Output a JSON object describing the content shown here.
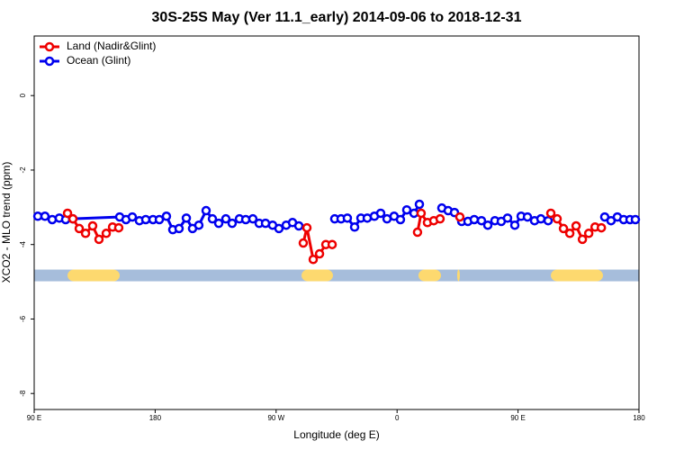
{
  "chart_data": {
    "type": "line",
    "title": "30S-25S May (Ver 11.1_early)   2014-09-06 to 2018-12-31",
    "x_label": "Longitude (deg E)",
    "y_label": "XCO2 - MLO trend (ppm)",
    "xlim": [
      90,
      540
    ],
    "ylim": [
      -8.43,
      1.6
    ],
    "xticks": [
      {
        "value": 90,
        "label": "90 E"
      },
      180,
      {
        "value": 270,
        "label": "90 W"
      },
      {
        "value": 360,
        "label": "0"
      },
      {
        "value": 450,
        "label": "90 E"
      },
      {
        "value": 540,
        "label": "180"
      }
    ],
    "yticks": [
      0,
      -2,
      -4,
      -6,
      -8
    ],
    "legend": "top-left",
    "land_band": {
      "y": -4.83,
      "color": "#a6bddb",
      "land_color": "#fdd96f",
      "spans": [
        [
          114.8,
          153.6
        ],
        [
          288.9,
          312.3
        ],
        [
          375.9,
          392.7
        ],
        [
          404.7,
          406.7
        ],
        [
          474.4,
          513.2
        ]
      ]
    },
    "series": [
      {
        "name": "Land (Nadir&Glint)",
        "color": "#ee0000",
        "x": [
          114.8,
          118.8,
          123.5,
          128.2,
          133.5,
          138.2,
          143.6,
          148.3,
          152.9,
          null,
          290.2,
          292.9,
          297.6,
          302.3,
          307.0,
          311.7,
          null,
          375.2,
          377.9,
          382.6,
          387.3,
          392.0,
          null,
          406.7,
          null,
          474.4,
          479.1,
          483.8,
          488.5,
          493.2,
          497.9,
          502.6,
          507.3,
          512.0
        ],
        "values": [
          -3.16,
          -3.31,
          -3.57,
          -3.7,
          -3.5,
          -3.86,
          -3.7,
          -3.53,
          -3.55,
          null,
          -3.96,
          -3.55,
          -4.4,
          -4.25,
          -4.0,
          -4.0,
          null,
          -3.67,
          -3.16,
          -3.41,
          -3.36,
          -3.31,
          null,
          -3.26,
          null,
          -3.16,
          -3.31,
          -3.57,
          -3.7,
          -3.5,
          -3.86,
          -3.7,
          -3.53,
          -3.55
        ]
      },
      {
        "name": "Ocean (Glint)",
        "color": "#0000ee",
        "x": [
          92.7,
          98.0,
          103.4,
          108.7,
          113.4,
          118.8,
          153.6,
          158.3,
          163.0,
          168.3,
          173.0,
          178.4,
          183.1,
          188.4,
          193.1,
          197.8,
          203.2,
          207.8,
          212.5,
          217.9,
          222.6,
          227.3,
          232.6,
          237.3,
          242.7,
          247.4,
          252.7,
          257.4,
          262.1,
          267.4,
          272.1,
          277.5,
          282.2,
          286.9,
          null,
          313.6,
          318.3,
          323.0,
          328.4,
          333.1,
          337.8,
          343.1,
          347.8,
          352.5,
          357.8,
          362.5,
          367.2,
          372.6,
          376.6,
          null,
          393.3,
          398.0,
          402.7,
          408.1,
          412.7,
          417.4,
          422.8,
          427.5,
          432.8,
          437.5,
          442.2,
          447.6,
          452.3,
          457.0,
          462.3,
          467.0,
          472.4,
          null,
          514.5,
          519.2,
          523.9,
          528.6,
          533.3,
          537.3
        ],
        "values": [
          -3.24,
          -3.24,
          -3.33,
          -3.29,
          -3.33,
          -3.31,
          -3.26,
          -3.33,
          -3.26,
          -3.36,
          -3.33,
          -3.33,
          -3.33,
          -3.24,
          -3.6,
          -3.57,
          -3.29,
          -3.57,
          -3.48,
          -3.09,
          -3.31,
          -3.43,
          -3.31,
          -3.43,
          -3.31,
          -3.33,
          -3.31,
          -3.43,
          -3.43,
          -3.48,
          -3.57,
          -3.48,
          -3.41,
          -3.5,
          null,
          -3.31,
          -3.31,
          -3.29,
          -3.53,
          -3.29,
          -3.29,
          -3.24,
          -3.16,
          -3.31,
          -3.24,
          -3.33,
          -3.07,
          -3.16,
          -2.92,
          null,
          -3.02,
          -3.09,
          -3.14,
          -3.38,
          -3.38,
          -3.33,
          -3.36,
          -3.48,
          -3.36,
          -3.38,
          -3.29,
          -3.48,
          -3.24,
          -3.26,
          -3.36,
          -3.31,
          -3.36,
          null,
          -3.26,
          -3.36,
          -3.26,
          -3.33,
          -3.33,
          -3.33
        ]
      }
    ]
  }
}
